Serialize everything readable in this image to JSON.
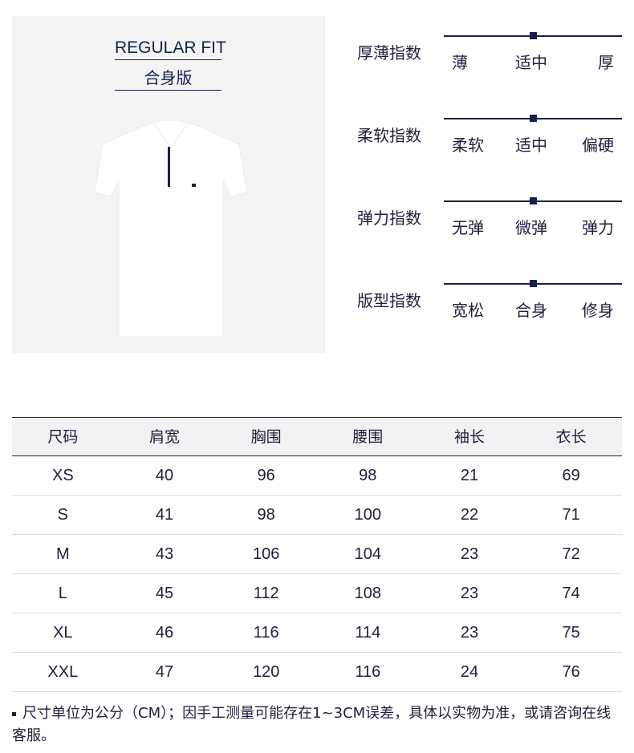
{
  "fit": {
    "english": "REGULAR FIT",
    "chinese": "合身版"
  },
  "scales": [
    {
      "label": "厚薄指数",
      "options": [
        "薄",
        "适中",
        "厚"
      ],
      "value": 0.5
    },
    {
      "label": "柔软指数",
      "options": [
        "柔软",
        "适中",
        "偏硬"
      ],
      "value": 0.5
    },
    {
      "label": "弹力指数",
      "options": [
        "无弹",
        "微弹",
        "弹力"
      ],
      "value": 0.5
    },
    {
      "label": "版型指数",
      "options": [
        "宽松",
        "合身",
        "修身"
      ],
      "value": 0.5
    }
  ],
  "table": {
    "headers": [
      "尺码",
      "肩宽",
      "胸围",
      "腰围",
      "袖长",
      "衣长"
    ],
    "rows": [
      [
        "XS",
        "40",
        "96",
        "98",
        "21",
        "69"
      ],
      [
        "S",
        "41",
        "98",
        "100",
        "22",
        "71"
      ],
      [
        "M",
        "43",
        "106",
        "104",
        "23",
        "72"
      ],
      [
        "L",
        "45",
        "112",
        "108",
        "23",
        "74"
      ],
      [
        "XL",
        "46",
        "116",
        "114",
        "23",
        "75"
      ],
      [
        "XXL",
        "47",
        "120",
        "116",
        "24",
        "76"
      ]
    ]
  },
  "note": "尺寸单位为公分（CM）；因手工测量可能存在1~3CM误差，具体以实物为准，或请咨询在线客服。"
}
